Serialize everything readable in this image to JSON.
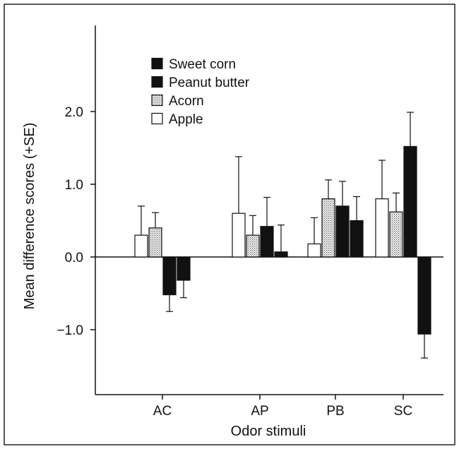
{
  "chart_data": {
    "type": "bar",
    "xlabel": "Odor stimuli",
    "ylabel": "Mean difference scores (+SE)",
    "ylim": [
      -1.85,
      3.0
    ],
    "yticks": [
      {
        "value": 2.0,
        "label": "2.0"
      },
      {
        "value": 1.0,
        "label": "1.0"
      },
      {
        "value": 0.0,
        "label": "0.0"
      },
      {
        "value": -1.0,
        "label": "−1.0"
      }
    ],
    "categories": [
      "AC",
      "AP",
      "PB",
      "SC"
    ],
    "grid": false,
    "legend_position": "top-left",
    "series": [
      {
        "name": "Apple",
        "fill": "white",
        "values": [
          0.3,
          0.6,
          0.18,
          0.8
        ],
        "se": [
          0.4,
          0.78,
          0.36,
          0.53
        ]
      },
      {
        "name": "Acorn",
        "fill": "dotted",
        "values": [
          0.4,
          0.3,
          0.8,
          0.62
        ],
        "se": [
          0.21,
          0.27,
          0.26,
          0.26
        ]
      },
      {
        "name": "Peanut butter",
        "fill": "black",
        "values": [
          -0.52,
          0.42,
          0.7,
          1.52
        ],
        "se": [
          0.23,
          0.4,
          0.34,
          0.47
        ]
      },
      {
        "name": "Sweet corn",
        "fill": "black",
        "values": [
          -0.32,
          0.07,
          0.5,
          -1.06
        ],
        "se": [
          0.24,
          0.37,
          0.33,
          0.33
        ]
      }
    ],
    "legend_order": [
      "Sweet corn",
      "Peanut butter",
      "Acorn",
      "Apple"
    ]
  }
}
